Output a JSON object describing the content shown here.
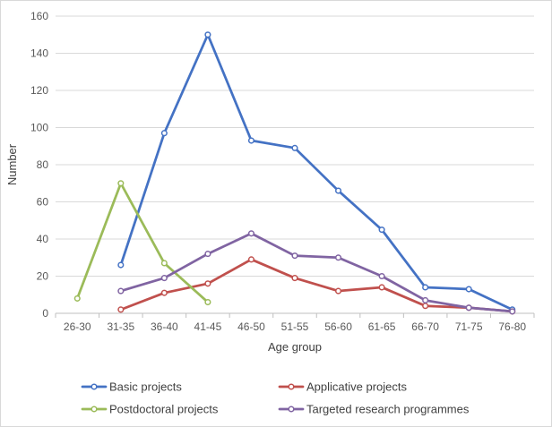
{
  "chart_data": {
    "type": "line",
    "xlabel": "Age group",
    "ylabel": "Number",
    "categories": [
      "26-30",
      "31-35",
      "36-40",
      "41-45",
      "46-50",
      "51-55",
      "56-60",
      "61-65",
      "66-70",
      "71-75",
      "76-80"
    ],
    "ylim": [
      0,
      160
    ],
    "yticks": [
      0,
      20,
      40,
      60,
      80,
      100,
      120,
      140,
      160
    ],
    "grid": true,
    "legend_position": "bottom",
    "series": [
      {
        "name": "Basic projects",
        "color": "#4472c4",
        "values": [
          null,
          26,
          97,
          150,
          93,
          89,
          66,
          45,
          14,
          13,
          2
        ]
      },
      {
        "name": "Applicative projects",
        "color": "#c0504d",
        "values": [
          null,
          2,
          11,
          16,
          29,
          19,
          12,
          14,
          4,
          3,
          1
        ]
      },
      {
        "name": "Postdoctoral projects",
        "color": "#9bbb59",
        "values": [
          8,
          70,
          27,
          6,
          null,
          null,
          null,
          null,
          null,
          null,
          null
        ]
      },
      {
        "name": "Targeted research programmes",
        "color": "#8064a2",
        "values": [
          null,
          12,
          19,
          32,
          43,
          31,
          30,
          20,
          7,
          3,
          1
        ]
      }
    ]
  }
}
